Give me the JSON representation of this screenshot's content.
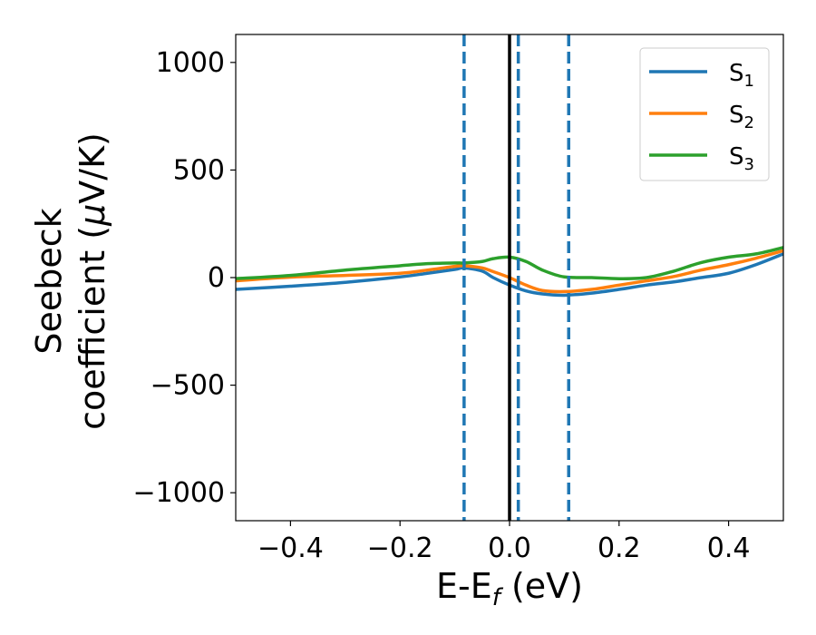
{
  "chart_data": {
    "type": "line",
    "title": "",
    "xlabel": {
      "main": "E-E",
      "sub": "f",
      "unit": " (eV)"
    },
    "ylabel": {
      "line1": "Seebeck",
      "line2_prefix": "coefficient  (",
      "line2_mu": "μ",
      "line2_suffix": "V/K)"
    },
    "xlim": [
      -0.5,
      0.5
    ],
    "ylim": [
      -1130,
      1130
    ],
    "x_ticks": [
      -0.4,
      -0.2,
      0.0,
      0.2,
      0.4
    ],
    "x_tick_labels": [
      "−0.4",
      "−0.2",
      "0.0",
      "0.2",
      "0.4"
    ],
    "y_ticks": [
      -1000,
      -500,
      0,
      500,
      1000
    ],
    "y_tick_labels": [
      "−1000",
      "−500",
      "0",
      "500",
      "1000"
    ],
    "grid": false,
    "legend_position": "top-right",
    "fermi_level_line": {
      "x": 0.0,
      "color": "#000000"
    },
    "dashed_lines": {
      "color": "#1f77b4",
      "x": [
        -0.083,
        0.016,
        0.108
      ]
    },
    "series": [
      {
        "name": "S",
        "subscript": "1",
        "color": "#1f77b4",
        "x": [
          -0.5,
          -0.4,
          -0.3,
          -0.2,
          -0.15,
          -0.1,
          -0.083,
          -0.05,
          -0.03,
          0.0,
          0.03,
          0.06,
          0.1,
          0.15,
          0.2,
          0.25,
          0.3,
          0.35,
          0.4,
          0.45,
          0.5
        ],
        "y": [
          -55,
          -40,
          -22,
          3,
          20,
          38,
          45,
          30,
          0,
          -35,
          -62,
          -76,
          -82,
          -72,
          -55,
          -35,
          -20,
          0,
          20,
          60,
          110
        ]
      },
      {
        "name": "S",
        "subscript": "2",
        "color": "#ff7f0e",
        "x": [
          -0.5,
          -0.4,
          -0.3,
          -0.2,
          -0.15,
          -0.1,
          -0.083,
          -0.05,
          -0.03,
          0.0,
          0.03,
          0.06,
          0.1,
          0.15,
          0.2,
          0.25,
          0.3,
          0.35,
          0.4,
          0.45,
          0.5
        ],
        "y": [
          -15,
          2,
          10,
          20,
          35,
          52,
          55,
          45,
          28,
          0,
          -35,
          -60,
          -65,
          -55,
          -35,
          -15,
          5,
          35,
          60,
          90,
          125
        ]
      },
      {
        "name": "S",
        "subscript": "3",
        "color": "#2ca02c",
        "x": [
          -0.5,
          -0.4,
          -0.3,
          -0.2,
          -0.15,
          -0.1,
          -0.083,
          -0.05,
          -0.03,
          0.0,
          0.03,
          0.06,
          0.1,
          0.15,
          0.2,
          0.25,
          0.3,
          0.35,
          0.4,
          0.45,
          0.5
        ],
        "y": [
          -5,
          10,
          35,
          55,
          65,
          68,
          68,
          75,
          88,
          95,
          75,
          35,
          3,
          0,
          -5,
          0,
          30,
          70,
          95,
          110,
          140
        ]
      }
    ]
  }
}
